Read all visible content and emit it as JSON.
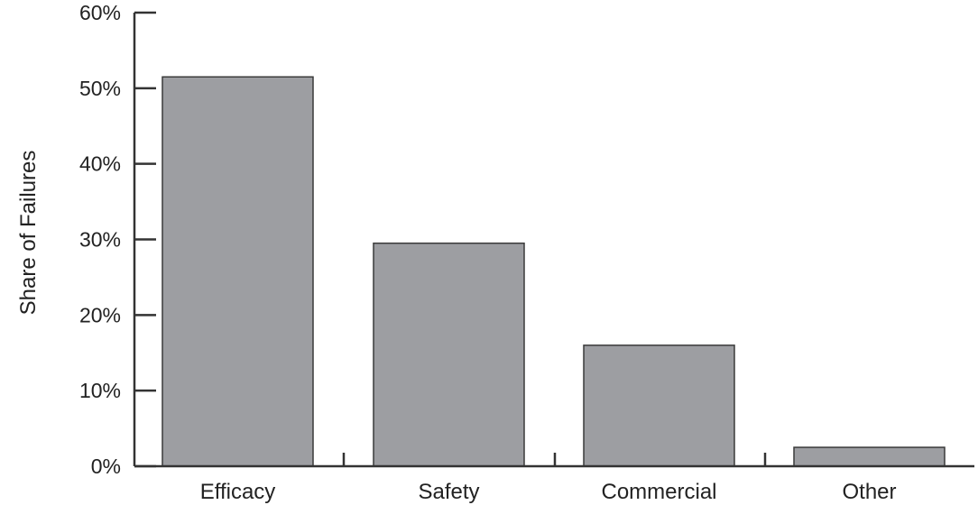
{
  "chart_data": {
    "type": "bar",
    "title": "",
    "xlabel": "",
    "ylabel": "Share of Failures",
    "categories": [
      "Efficacy",
      "Safety",
      "Commercial",
      "Other"
    ],
    "values": [
      51.5,
      29.5,
      16,
      2.5
    ],
    "value_unit": "%",
    "ylim": [
      0,
      60
    ],
    "yticks": [
      0,
      10,
      20,
      30,
      40,
      50,
      60
    ],
    "ytick_labels": [
      "0%",
      "10%",
      "20%",
      "30%",
      "40%",
      "50%",
      "60%"
    ],
    "grid": false,
    "legend": "none",
    "colors": {
      "bar_fill": "#9d9ea2",
      "bar_stroke": "#3a3a3a",
      "axis": "#333333"
    }
  }
}
